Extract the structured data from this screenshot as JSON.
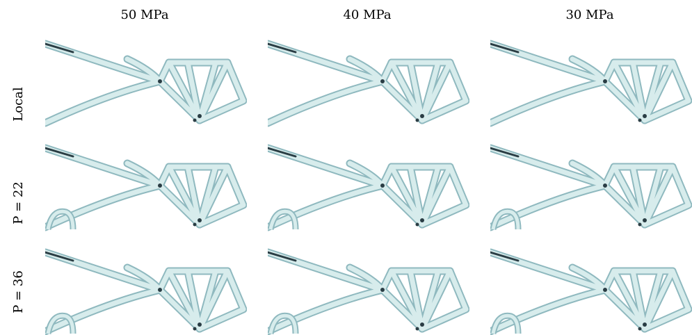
{
  "columns": [
    "50 MPa",
    "40 MPa",
    "30 MPa"
  ],
  "rows": [
    "Local",
    "P = 22",
    "P = 36"
  ]
}
